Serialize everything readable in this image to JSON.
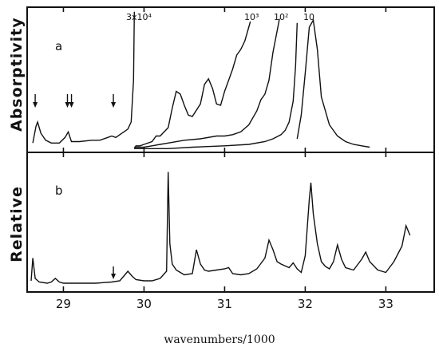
{
  "figure": {
    "ylabel_a": "Absorptivity",
    "ylabel_b": "Relative",
    "xlabel": "wavenumbers/1000"
  },
  "chart_data": [
    {
      "type": "line",
      "panel_label": "a",
      "xlim": [
        28.55,
        33.6
      ],
      "series": [
        {
          "annotation": "3x10⁴",
          "x": [
            28.62,
            28.66,
            28.68,
            28.72,
            28.78,
            28.85,
            28.95,
            29.02,
            29.06,
            29.1,
            29.2,
            29.35,
            29.45,
            29.55,
            29.6,
            29.65,
            29.7,
            29.75,
            29.8,
            29.84,
            29.87,
            29.88
          ],
          "y": [
            0.05,
            0.17,
            0.2,
            0.12,
            0.07,
            0.05,
            0.05,
            0.09,
            0.13,
            0.06,
            0.06,
            0.07,
            0.07,
            0.09,
            0.1,
            0.09,
            0.11,
            0.13,
            0.15,
            0.2,
            0.5,
            0.99
          ]
        },
        {
          "annotation": "10³",
          "x": [
            29.88,
            29.9,
            29.95,
            30.0,
            30.1,
            30.15,
            30.2,
            30.3,
            30.35,
            30.4,
            30.45,
            30.5,
            30.55,
            30.6,
            30.7,
            30.75,
            30.8,
            30.85,
            30.9,
            30.95,
            31.0,
            31.05,
            31.1,
            31.15,
            31.2,
            31.25,
            31.3,
            31.32
          ],
          "y": [
            0.01,
            0.03,
            0.03,
            0.04,
            0.06,
            0.1,
            0.1,
            0.16,
            0.3,
            0.42,
            0.4,
            0.32,
            0.25,
            0.24,
            0.33,
            0.47,
            0.51,
            0.44,
            0.33,
            0.32,
            0.42,
            0.5,
            0.58,
            0.68,
            0.72,
            0.78,
            0.88,
            0.92
          ]
        },
        {
          "annotation": "10²",
          "x": [
            29.88,
            30.0,
            30.1,
            30.2,
            30.3,
            30.5,
            30.7,
            30.9,
            31.0,
            31.1,
            31.2,
            31.3,
            31.4,
            31.45,
            31.5,
            31.55,
            31.6,
            31.65,
            31.68
          ],
          "y": [
            0.02,
            0.02,
            0.03,
            0.04,
            0.05,
            0.07,
            0.08,
            0.1,
            0.1,
            0.11,
            0.13,
            0.18,
            0.28,
            0.36,
            0.4,
            0.5,
            0.7,
            0.85,
            0.94
          ]
        },
        {
          "annotation": "10",
          "x": [
            29.88,
            30.0,
            30.3,
            30.6,
            31.0,
            31.3,
            31.5,
            31.6,
            31.7,
            31.75,
            31.8,
            31.85,
            31.88,
            31.9
          ],
          "y": [
            0.01,
            0.01,
            0.01,
            0.02,
            0.03,
            0.04,
            0.06,
            0.08,
            0.11,
            0.14,
            0.2,
            0.35,
            0.6,
            0.91
          ]
        },
        {
          "annotation": "",
          "x": [
            31.9,
            31.95,
            32.0,
            32.05,
            32.1,
            32.15,
            32.2,
            32.3,
            32.4,
            32.5,
            32.6,
            32.7,
            32.8
          ],
          "y": [
            0.08,
            0.25,
            0.55,
            0.88,
            0.93,
            0.72,
            0.38,
            0.18,
            0.1,
            0.06,
            0.04,
            0.03,
            0.02
          ]
        }
      ],
      "arrows_at_x": [
        28.65,
        29.05,
        29.1,
        29.62
      ]
    },
    {
      "type": "line",
      "panel_label": "b",
      "xlim": [
        28.55,
        33.6
      ],
      "ylim": [
        0,
        1
      ],
      "x": [
        28.6,
        28.62,
        28.65,
        28.7,
        28.8,
        28.85,
        28.9,
        28.95,
        29.0,
        29.2,
        29.4,
        29.6,
        29.7,
        29.75,
        29.8,
        29.85,
        29.9,
        30.0,
        30.1,
        30.2,
        30.28,
        30.3,
        30.32,
        30.35,
        30.4,
        30.5,
        30.6,
        30.65,
        30.7,
        30.75,
        30.8,
        30.9,
        31.0,
        31.05,
        31.1,
        31.2,
        31.3,
        31.4,
        31.5,
        31.55,
        31.6,
        31.65,
        31.7,
        31.8,
        31.85,
        31.9,
        31.95,
        32.0,
        32.05,
        32.07,
        32.1,
        32.15,
        32.2,
        32.25,
        32.3,
        32.35,
        32.4,
        32.45,
        32.5,
        32.6,
        32.7,
        32.75,
        32.8,
        32.9,
        33.0,
        33.1,
        33.2,
        33.25,
        33.3
      ],
      "y": [
        0.04,
        0.23,
        0.06,
        0.03,
        0.02,
        0.03,
        0.06,
        0.03,
        0.02,
        0.02,
        0.02,
        0.03,
        0.04,
        0.08,
        0.12,
        0.08,
        0.05,
        0.04,
        0.04,
        0.06,
        0.12,
        0.95,
        0.35,
        0.18,
        0.13,
        0.09,
        0.1,
        0.3,
        0.18,
        0.13,
        0.12,
        0.13,
        0.14,
        0.15,
        0.1,
        0.09,
        0.1,
        0.14,
        0.23,
        0.38,
        0.3,
        0.2,
        0.18,
        0.15,
        0.19,
        0.14,
        0.11,
        0.25,
        0.72,
        0.86,
        0.6,
        0.35,
        0.2,
        0.16,
        0.14,
        0.2,
        0.34,
        0.22,
        0.15,
        0.13,
        0.22,
        0.28,
        0.2,
        0.13,
        0.11,
        0.2,
        0.33,
        0.5,
        0.42
      ]
    }
  ],
  "axis": {
    "ticks": [
      "29",
      "30",
      "31",
      "32",
      "33"
    ]
  }
}
